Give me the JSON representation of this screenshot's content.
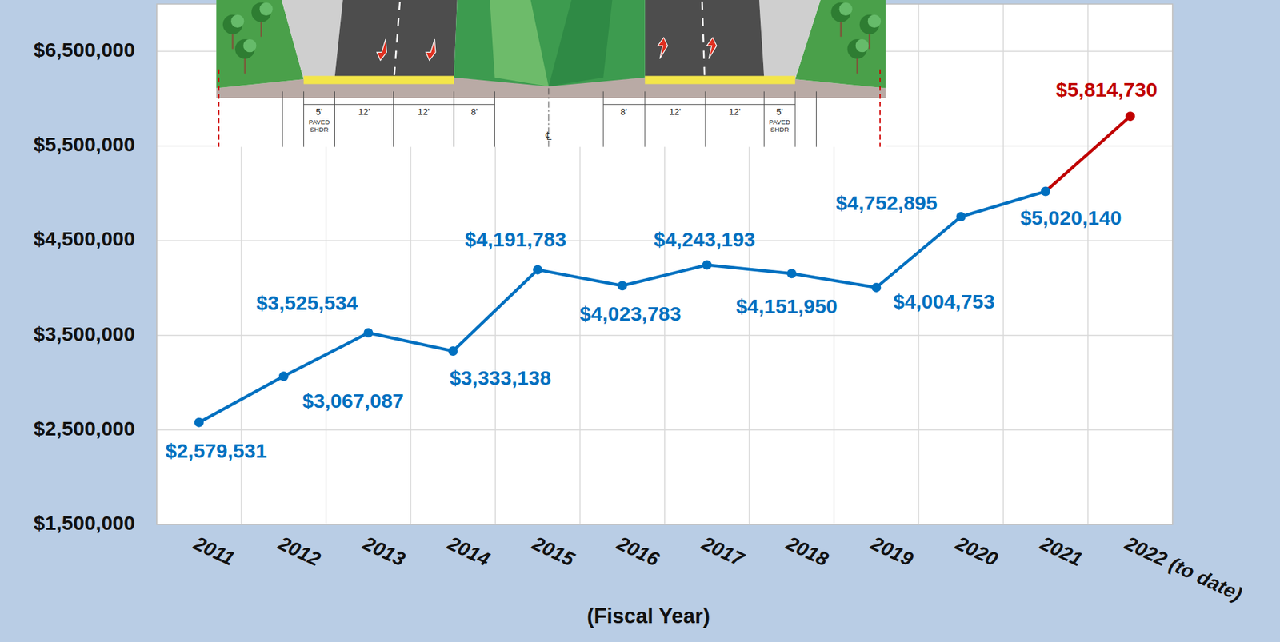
{
  "chart_data": {
    "type": "line",
    "x_label": "(Fiscal Year)",
    "categories": [
      "2011",
      "2012",
      "2013",
      "2014",
      "2015",
      "2016",
      "2017",
      "2018",
      "2019",
      "2020",
      "2021",
      "2022 (to date)"
    ],
    "values": [
      2579531,
      3067087,
      3525534,
      3333138,
      4191783,
      4023783,
      4243193,
      4151950,
      4004753,
      4752895,
      5020140,
      5814730
    ],
    "value_labels": [
      "$2,579,531",
      "$3,067,087",
      "$3,525,534",
      "$3,333,138",
      "$4,191,783",
      "$4,023,783",
      "$4,243,193",
      "$4,151,950",
      "$4,004,753",
      "$4,752,895",
      "$5,020,140",
      "$5,814,730"
    ],
    "colors": [
      "#0070c0",
      "#0070c0",
      "#0070c0",
      "#0070c0",
      "#0070c0",
      "#0070c0",
      "#0070c0",
      "#0070c0",
      "#0070c0",
      "#0070c0",
      "#0070c0",
      "#c00000"
    ],
    "marker": "circle",
    "data_labels": true,
    "grid": true,
    "ylim": [
      1500000,
      7000000
    ],
    "yticks": [
      {
        "value": 1500000,
        "label": "$1,500,000"
      },
      {
        "value": 2500000,
        "label": "$2,500,000"
      },
      {
        "value": 3500000,
        "label": "$3,500,000"
      },
      {
        "value": 4500000,
        "label": "$4,500,000"
      },
      {
        "value": 5500000,
        "label": "$5,500,000"
      },
      {
        "value": 6500000,
        "label": "$6,500,000"
      }
    ],
    "annotations": [
      "5'",
      "PAVED SHDR",
      "12'",
      "12'",
      "8'",
      "℄",
      "8'",
      "12'",
      "12'",
      "5'",
      "PAVED SHDR"
    ]
  }
}
